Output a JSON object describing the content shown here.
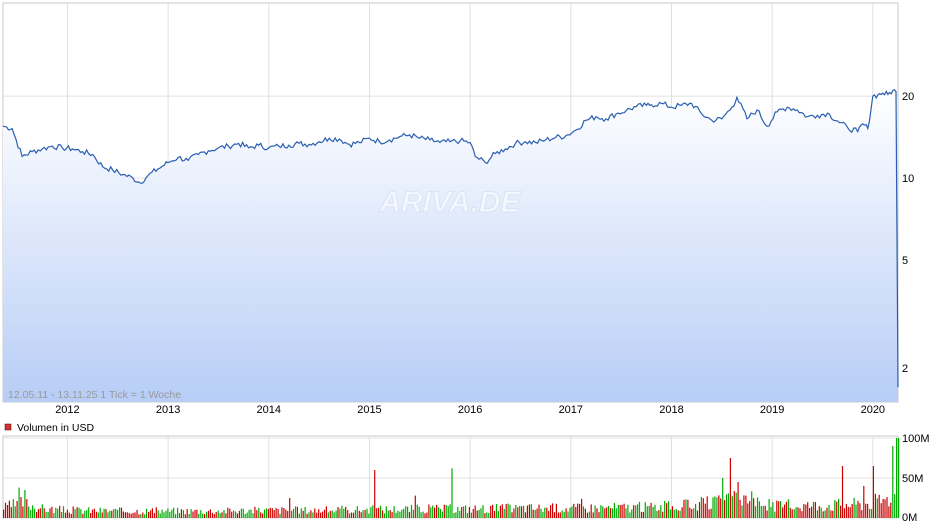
{
  "watermark": "ARIVA.DE",
  "chart_data": [
    {
      "type": "area",
      "title": "",
      "info_label": "12.05.11 - 13.11.25   1 Tick = 1 Woche",
      "x_tick_labels": [
        "2012",
        "2013",
        "2014",
        "2015",
        "2016",
        "2017",
        "2018",
        "2019",
        "2020"
      ],
      "y_scale": "log",
      "y_tick_labels": [
        "20",
        "10",
        "5",
        "2"
      ],
      "y_ticks": [
        20,
        10,
        5,
        2
      ],
      "ylim": [
        1.5,
        44
      ],
      "xlim": [
        2011.36,
        2020.25
      ],
      "grid": true,
      "series": [
        {
          "x": [
            2011.36,
            2011.45,
            2011.55,
            2011.65,
            2011.75,
            2011.85,
            2011.95,
            2012.05,
            2012.15,
            2012.25,
            2012.35,
            2012.45,
            2012.55,
            2012.65,
            2012.72,
            2012.8,
            2012.9,
            2013.0,
            2013.1,
            2013.2,
            2013.3,
            2013.4,
            2013.5,
            2013.6,
            2013.7,
            2013.8,
            2013.9,
            2014.0,
            2014.1,
            2014.2,
            2014.3,
            2014.4,
            2014.5,
            2014.6,
            2014.7,
            2014.8,
            2014.9,
            2015.0,
            2015.1,
            2015.2,
            2015.3,
            2015.4,
            2015.5,
            2015.6,
            2015.7,
            2015.8,
            2015.9,
            2016.0,
            2016.05,
            2016.15,
            2016.25,
            2016.35,
            2016.45,
            2016.55,
            2016.65,
            2016.75,
            2016.85,
            2016.95,
            2017.05,
            2017.15,
            2017.25,
            2017.35,
            2017.45,
            2017.55,
            2017.65,
            2017.75,
            2017.8,
            2017.9,
            2018.0,
            2018.1,
            2018.2,
            2018.3,
            2018.4,
            2018.5,
            2018.6,
            2018.65,
            2018.75,
            2018.85,
            2018.95,
            2019.05,
            2019.15,
            2019.25,
            2019.35,
            2019.45,
            2019.55,
            2019.65,
            2019.75,
            2019.85,
            2019.9,
            2019.95,
            2020.0,
            2020.05,
            2020.1,
            2020.15,
            2020.2,
            2020.23,
            2020.25
          ],
          "y": [
            15.5,
            15.2,
            12.0,
            12.5,
            12.8,
            13.1,
            12.9,
            12.8,
            12.5,
            12.2,
            11.0,
            10.7,
            10.3,
            10.0,
            9.6,
            10.2,
            10.8,
            11.4,
            11.9,
            11.6,
            12.2,
            12.6,
            12.9,
            13.1,
            13.4,
            12.9,
            13.2,
            12.9,
            13.1,
            13.2,
            13.4,
            13.3,
            13.6,
            14.0,
            13.9,
            13.3,
            13.5,
            14.0,
            13.6,
            13.8,
            14.2,
            14.4,
            14.0,
            13.8,
            13.5,
            13.6,
            13.7,
            13.5,
            12.0,
            11.4,
            12.3,
            12.8,
            13.4,
            13.6,
            13.5,
            13.8,
            14.1,
            14.3,
            15.0,
            16.3,
            16.8,
            16.5,
            17.2,
            17.7,
            18.3,
            18.5,
            18.6,
            18.8,
            18.2,
            18.5,
            18.8,
            17.2,
            16.3,
            16.5,
            18.2,
            19.8,
            16.5,
            17.8,
            15.5,
            17.5,
            18.2,
            17.8,
            16.8,
            17.0,
            17.3,
            16.2,
            15.3,
            14.8,
            15.8,
            15.2,
            20.0,
            20.2,
            20.5,
            20.3,
            21.0,
            20.8,
            1.7
          ],
          "color": "#2a5fb0"
        }
      ]
    },
    {
      "type": "bar",
      "title": "",
      "legend_label": "Volumen in USD",
      "y_tick_labels": [
        "100M",
        "50M",
        "0M"
      ],
      "ylim": [
        0,
        100
      ],
      "colors": [
        "#cc0000",
        "#00aa00"
      ],
      "volume_profile": [
        {
          "x": 2011.36,
          "v": 14
        },
        {
          "x": 2011.55,
          "v": 22
        },
        {
          "x": 2011.75,
          "v": 13
        },
        {
          "x": 2012.0,
          "v": 11
        },
        {
          "x": 2012.5,
          "v": 10
        },
        {
          "x": 2013.0,
          "v": 10
        },
        {
          "x": 2013.5,
          "v": 10
        },
        {
          "x": 2014.0,
          "v": 11
        },
        {
          "x": 2014.5,
          "v": 11
        },
        {
          "x": 2015.0,
          "v": 12
        },
        {
          "x": 2015.5,
          "v": 13
        },
        {
          "x": 2016.0,
          "v": 13
        },
        {
          "x": 2016.5,
          "v": 14
        },
        {
          "x": 2017.0,
          "v": 14
        },
        {
          "x": 2017.5,
          "v": 15
        },
        {
          "x": 2018.0,
          "v": 16
        },
        {
          "x": 2018.5,
          "v": 22
        },
        {
          "x": 2018.7,
          "v": 28
        },
        {
          "x": 2019.0,
          "v": 17
        },
        {
          "x": 2019.5,
          "v": 18
        },
        {
          "x": 2019.9,
          "v": 20
        },
        {
          "x": 2020.1,
          "v": 26
        },
        {
          "x": 2020.25,
          "v": 30
        }
      ],
      "spikes": [
        {
          "x": 2011.52,
          "v": 38
        },
        {
          "x": 2011.58,
          "v": 35
        },
        {
          "x": 2014.2,
          "v": 25
        },
        {
          "x": 2015.05,
          "v": 60
        },
        {
          "x": 2015.45,
          "v": 28
        },
        {
          "x": 2015.82,
          "v": 62
        },
        {
          "x": 2017.1,
          "v": 24
        },
        {
          "x": 2018.5,
          "v": 50
        },
        {
          "x": 2018.58,
          "v": 75
        },
        {
          "x": 2018.65,
          "v": 45
        },
        {
          "x": 2019.7,
          "v": 65
        },
        {
          "x": 2019.9,
          "v": 40
        },
        {
          "x": 2020.0,
          "v": 65
        },
        {
          "x": 2020.2,
          "v": 90
        },
        {
          "x": 2020.24,
          "v": 100
        }
      ]
    }
  ]
}
